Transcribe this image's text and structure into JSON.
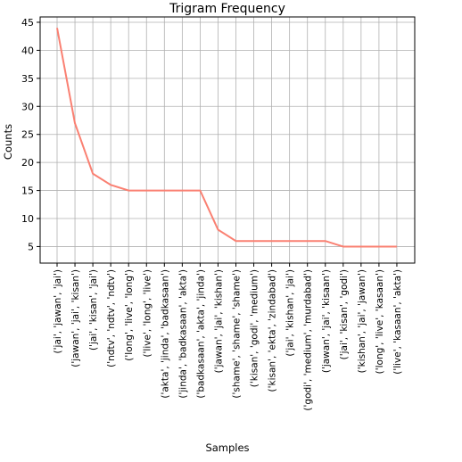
{
  "chart_data": {
    "type": "line",
    "title": "Trigram Frequency",
    "xlabel": "Samples",
    "ylabel": "Counts",
    "categories": [
      "('jai', 'jawan', 'jai')",
      "('jawan', 'jai', 'kisan')",
      "('jai', 'kisan', 'jai')",
      "('ndtv', 'ndtv', 'ndtv')",
      "('long', 'live', 'long')",
      "('live', 'long', 'live')",
      "('akta', 'jinda', 'badkasaan')",
      "('jinda', 'badkasaan', 'akta')",
      "('badkasaan', 'akta', 'jinda')",
      "('jawan', 'jai', 'kishan')",
      "('shame', 'shame', 'shame')",
      "('kisan', 'godi', 'medium')",
      "('kisan', 'ekta', 'zindabad')",
      "('jai', 'kishan', 'jai')",
      "('godi', 'medium', 'murdabad')",
      "('jawan', 'jai', 'kisaan')",
      "('jai', 'kisan', 'godi')",
      "('kishan', 'jai', 'jawan')",
      "('long', 'live', 'kasaan')",
      "('live', 'kasaan', 'akta')"
    ],
    "series": [
      {
        "values": [
          44,
          27,
          18,
          16,
          15,
          15,
          15,
          15,
          15,
          8,
          6,
          6,
          6,
          6,
          6,
          6,
          5,
          5,
          5,
          5
        ]
      }
    ],
    "yticks": [
      5,
      10,
      15,
      20,
      25,
      30,
      35,
      40,
      45
    ],
    "ylim": [
      2.05,
      45.95
    ],
    "grid": true,
    "line_color": "#fa8072",
    "grid_color": "#b0b0b0"
  }
}
